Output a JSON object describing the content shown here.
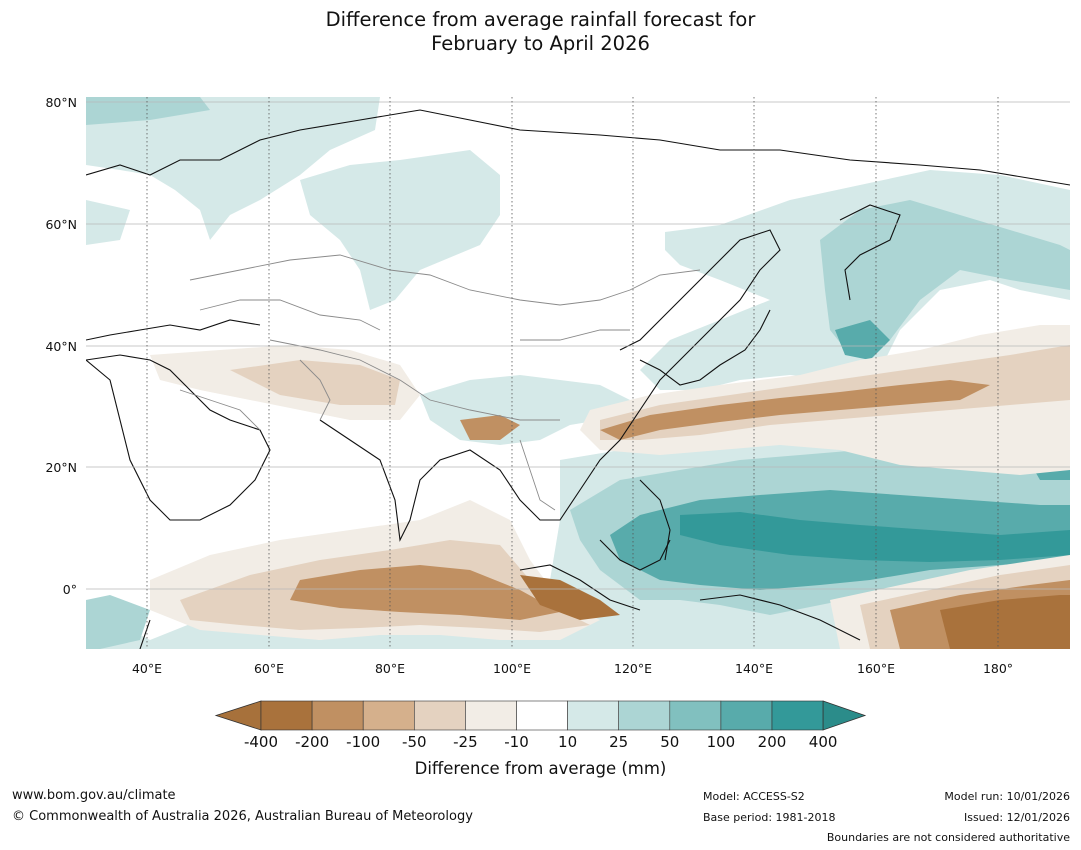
{
  "title": {
    "line1": "Difference from average rainfall forecast for",
    "line2": "February to April 2026"
  },
  "lat_labels": [
    "80°N",
    "60°N",
    "40°N",
    "20°N",
    "0°"
  ],
  "lon_labels": [
    "40°E",
    "60°E",
    "80°E",
    "100°E",
    "120°E",
    "140°E",
    "160°E",
    "180°"
  ],
  "colorbar": {
    "title": "Difference from average (mm)",
    "ticks": [
      "-400",
      "-200",
      "-100",
      "-50",
      "-25",
      "-10",
      "10",
      "25",
      "50",
      "100",
      "200",
      "400"
    ],
    "colors": [
      "#a7713b",
      "#a9723c",
      "#c09062",
      "#d5b08c",
      "#e4d2c0",
      "#f2ede6",
      "#ffffff",
      "#d5e9e8",
      "#acd5d4",
      "#81c0bf",
      "#58abab",
      "#339999",
      "#2b8c8a"
    ]
  },
  "footer": {
    "website": "www.bom.gov.au/climate",
    "copyright": "© Commonwealth of Australia 2026, Australian Bureau of Meteorology",
    "model": "Model: ACCESS-S2",
    "base_period": "Base period: 1981-2018",
    "model_run": "Model run: 10/01/2026",
    "issued": "Issued: 12/01/2026",
    "disclaimer": "Boundaries are not considered authoritative"
  }
}
